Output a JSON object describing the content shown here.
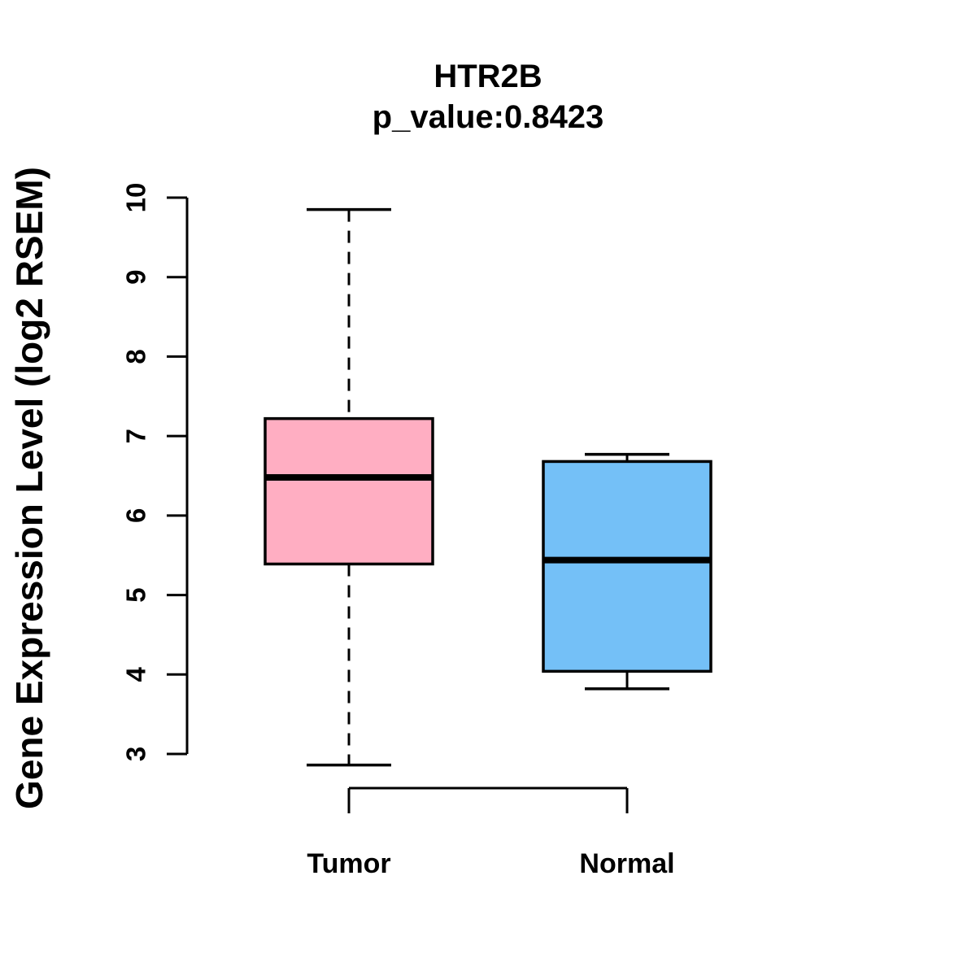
{
  "title": "HTR2B",
  "subtitle": "p_value:0.8423",
  "y_axis_label": "Gene Expression Level (log2 RSEM)",
  "chart_data": {
    "type": "boxplot",
    "title": "HTR2B",
    "subtitle": "p_value:0.8423",
    "ylabel": "Gene Expression Level (log2 RSEM)",
    "xlabel": "",
    "categories": [
      "Tumor",
      "Normal"
    ],
    "ylim": [
      3,
      10
    ],
    "yticks": [
      3,
      4,
      5,
      6,
      7,
      8,
      9,
      10
    ],
    "grid": false,
    "legend": "none",
    "series": [
      {
        "name": "Tumor",
        "lower_whisker": 2.86,
        "q1": 5.39,
        "median": 6.48,
        "q3": 7.22,
        "upper_whisker": 9.85,
        "fill_color": "#FFAEC2",
        "whisker_line_style": "dashed"
      },
      {
        "name": "Normal",
        "lower_whisker": 3.82,
        "q1": 4.04,
        "median": 5.44,
        "q3": 6.68,
        "upper_whisker": 6.77,
        "fill_color": "#74C0F7",
        "whisker_line_style": "solid"
      }
    ],
    "line_color": "#000000",
    "background_color": "#FFFFFF"
  }
}
